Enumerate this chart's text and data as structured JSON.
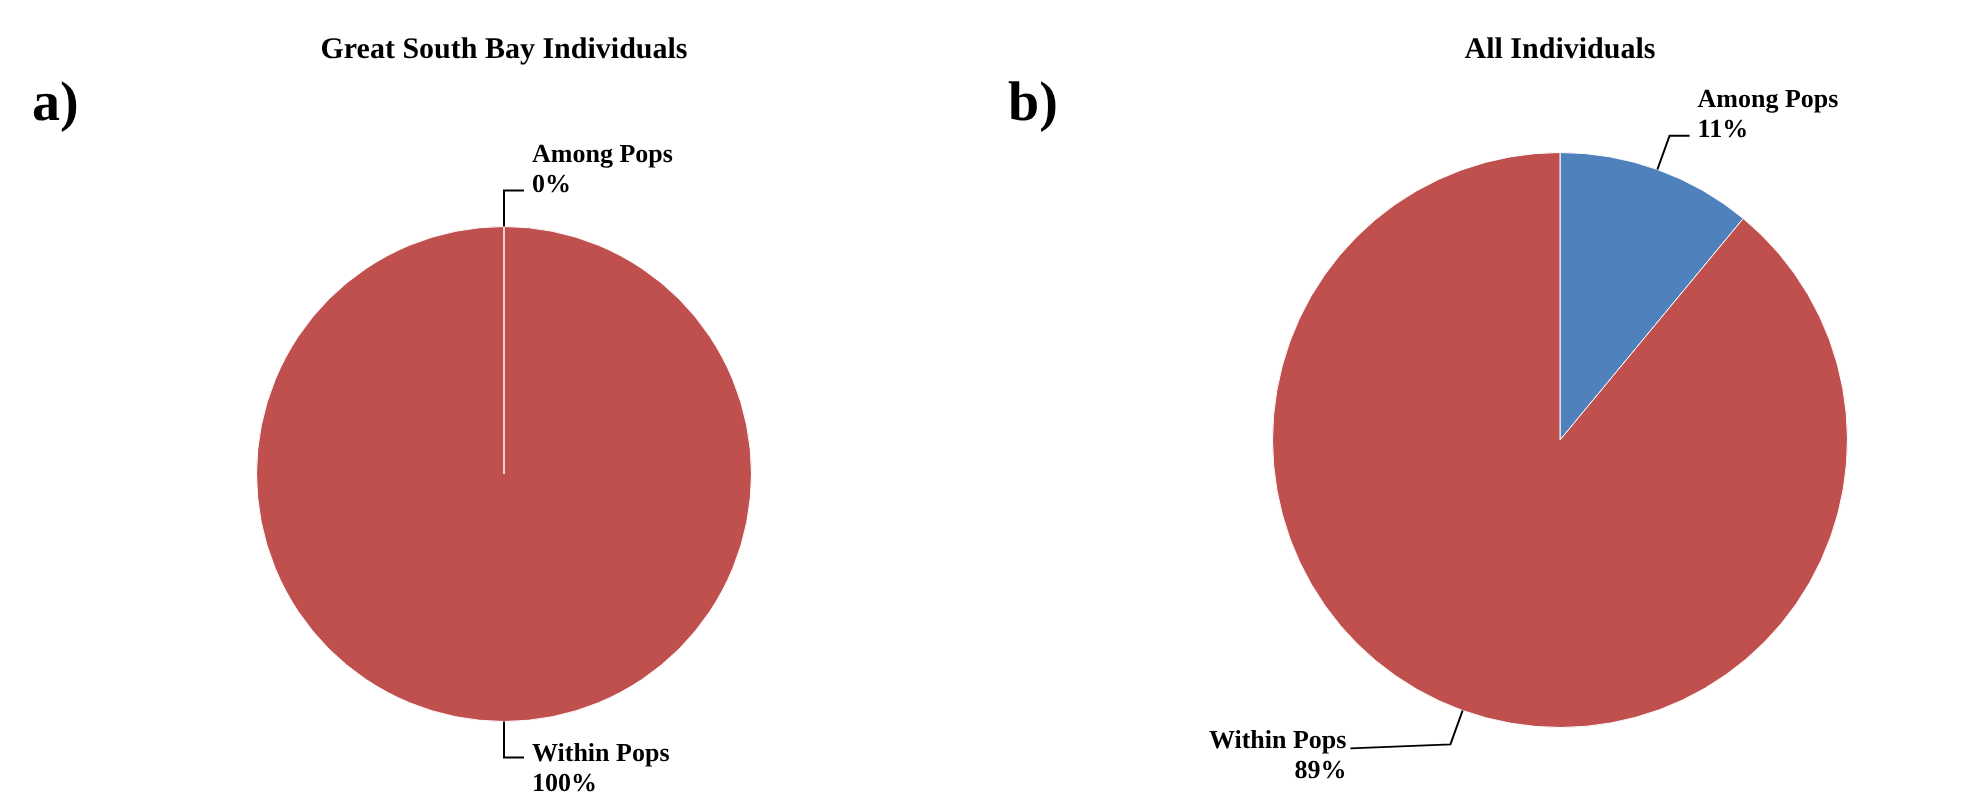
{
  "chart_data": [
    {
      "type": "pie",
      "title": "Great South Bay Individuals",
      "categories": [
        "Among Pops",
        "Within Pops"
      ],
      "values": [
        0,
        100
      ],
      "value_labels": [
        "0%",
        "100%"
      ],
      "colors": [
        "#4f81bd",
        "#c0504d"
      ],
      "annotations": [
        "a)"
      ]
    },
    {
      "type": "pie",
      "title": "All Individuals",
      "categories": [
        "Among Pops",
        "Within Pops"
      ],
      "values": [
        11,
        89
      ],
      "value_labels": [
        "11%",
        "89%"
      ],
      "colors": [
        "#4f81bd",
        "#c0504d"
      ],
      "annotations": [
        "b)"
      ]
    }
  ]
}
